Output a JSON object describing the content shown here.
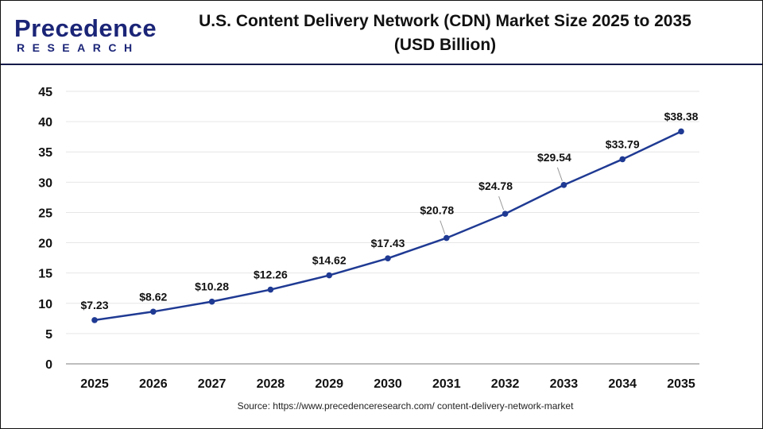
{
  "logo": {
    "brand_top": "Precedence",
    "brand_bottom": "RESEARCH"
  },
  "title": "U.S. Content Delivery Network (CDN) Market Size 2025 to 2035",
  "subtitle": "(USD Billion)",
  "source": "Source: https://www.precedenceresearch.com/ content-delivery-network-market",
  "colors": {
    "line": "#1f3a93",
    "grid": "#e6e6e6",
    "separator": "#141a4a"
  },
  "chart_data": {
    "type": "line",
    "title": "U.S. Content Delivery Network (CDN) Market Size 2025 to 2035 (USD Billion)",
    "categories": [
      "2025",
      "2026",
      "2027",
      "2028",
      "2029",
      "2030",
      "2031",
      "2032",
      "2033",
      "2034",
      "2035"
    ],
    "values": [
      7.23,
      8.62,
      10.28,
      12.26,
      14.62,
      17.43,
      20.78,
      24.78,
      29.54,
      33.79,
      38.38
    ],
    "data_labels": [
      "$7.23",
      "$8.62",
      "$10.28",
      "$12.26",
      "$14.62",
      "$17.43",
      "$20.78",
      "$24.78",
      "$29.54",
      "$33.79",
      "$38.38"
    ],
    "yticks": [
      "0",
      "5",
      "10",
      "15",
      "20",
      "25",
      "30",
      "35",
      "40",
      "45"
    ],
    "ylim": [
      0,
      45
    ],
    "grid": "horizontal",
    "xlabel": "",
    "ylabel": ""
  }
}
